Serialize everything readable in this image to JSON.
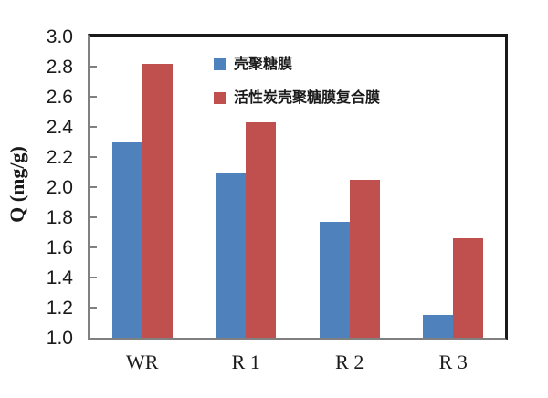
{
  "chart_data": {
    "type": "bar",
    "title": "",
    "xlabel": "",
    "ylabel": "Q (mg/g)",
    "categories": [
      "WR",
      "R 1",
      "R 2",
      "R 3"
    ],
    "series": [
      {
        "name": "壳聚糖膜",
        "color": "#4F81BD",
        "values": [
          2.3,
          2.1,
          1.77,
          1.15
        ]
      },
      {
        "name": "活性炭壳聚糖膜复合膜",
        "color": "#C0504D",
        "values": [
          2.82,
          2.43,
          2.05,
          1.66
        ]
      }
    ],
    "ylim": [
      1.0,
      3.0
    ],
    "ytick_step": 0.2,
    "ytick_labels": [
      "3.0",
      "2.8",
      "2.6",
      "2.4",
      "2.2",
      "2.0",
      "1.8",
      "1.6",
      "1.4",
      "1.2",
      "1.0"
    ],
    "grid": false,
    "tick_direction": "in",
    "legend_position": "upper-center-inside",
    "colors": {
      "axis": "#808080",
      "border": "#1A1A1A",
      "background": "#FFFFFF",
      "text": "#1A1A1A"
    }
  }
}
